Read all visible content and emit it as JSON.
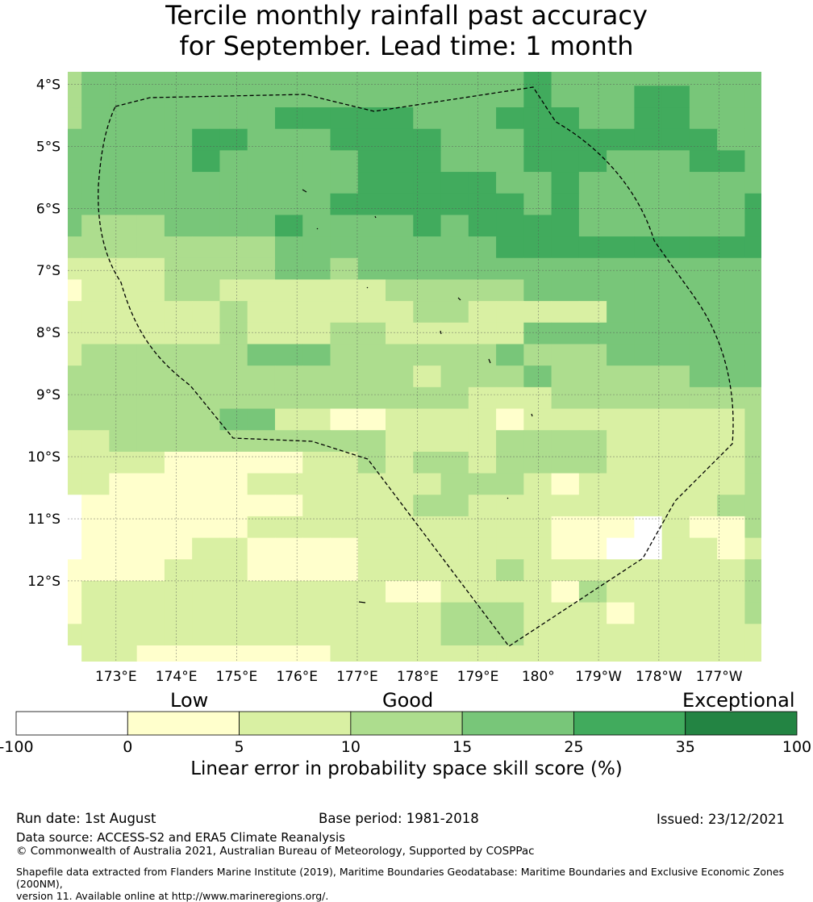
{
  "title": {
    "line1": "Tercile monthly rainfall past accuracy",
    "line2": "for September. Lead time: 1 month"
  },
  "map": {
    "lat_range": [
      -13.3,
      -3.8
    ],
    "lon_range": [
      172.2,
      183.7
    ],
    "cell_size_deg": 0.55,
    "lat_tick_labels": [
      "4°S",
      "5°S",
      "6°S",
      "7°S",
      "8°S",
      "9°S",
      "10°S",
      "11°S",
      "12°S"
    ],
    "lat_tick_values": [
      -4,
      -5,
      -6,
      -7,
      -8,
      -9,
      -10,
      -11,
      -12
    ],
    "lon_tick_labels": [
      "173°E",
      "174°E",
      "175°E",
      "176°E",
      "177°E",
      "178°E",
      "179°E",
      "180°",
      "179°W",
      "178°W",
      "177°W"
    ],
    "lon_tick_values": [
      173,
      174,
      175,
      176,
      177,
      178,
      179,
      180,
      181,
      182,
      183
    ],
    "grid": true,
    "skill_grid_class_rows": [
      "34444444444444444544444444",
      "34444444444444444544455444",
      "34444444555554445554455444",
      "44444554445555444555555544",
      "44444544444555444555444554",
      "44444444444555554454444444",
      "44444444445555555454444445",
      "43334444544445455554444445",
      "33333333444444445555555555",
      "22223333443444444444444444",
      "12223322222233333444444444",
      "22222232222223322222444444",
      "22222232223322222444444444",
      "23333334443333334333444444",
      "33333333333332333433333444",
      "33333333333333322233333333",
      "33333344221122221222222223",
      "22333333333322223333222223",
      "22221111122323323333222223",
      "22111112222222333212222223",
      "01111111122223322222222233",
      "01111112222222222211102113",
      "01111221111222222211002212",
      "11112221111222223222222223",
      "12222222222211222213222223",
      "12222222222222333222122223",
      "22222222222222333222222222",
      "02211111112222222222222222"
    ],
    "pacific_island_outline": "dashed boundary region",
    "source_note": "Tokelau/Tuvalu area shown"
  },
  "colorbar": {
    "categories": [
      {
        "label": "Low"
      },
      {
        "label": "Good"
      },
      {
        "label": "Exceptional"
      }
    ],
    "tick_labels": [
      "-100",
      "0",
      "5",
      "10",
      "15",
      "25",
      "35",
      "100"
    ],
    "colors": [
      "#ffffff",
      "#ffffcc",
      "#d9f0a3",
      "#addd8e",
      "#78c679",
      "#41ab5d",
      "#238443"
    ],
    "label": "Linear error in probability space skill score (%)"
  },
  "footer": {
    "run_date": "Run date: 1st August",
    "base_period": "Base period: 1981-2018",
    "issued": "Issued: 23/12/2021",
    "data_source": "Data source: ACCESS-S2 and ERA5 Climate Reanalysis",
    "copyright": "© Commonwealth of Australia 2021, Australian Bureau of Meteorology, Supported by COSPPac",
    "shapefile_1": "Shapefile data extracted from Flanders Marine Institute (2019), Maritime Boundaries Geodatabase: Maritime Boundaries and Exclusive Economic Zones (200NM),",
    "shapefile_2": "version 11. Available online at http://www.marineregions.org/."
  }
}
